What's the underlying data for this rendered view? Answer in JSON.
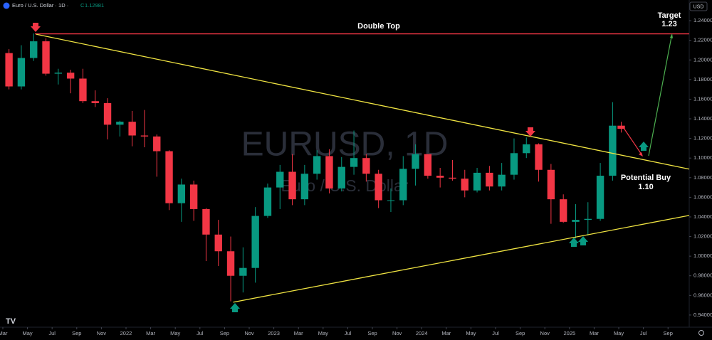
{
  "header": {
    "symbol": "Euro / U.S. Dollar · 1D ·",
    "close_label": "C",
    "close": 1.12981,
    "currency": "USD"
  },
  "chart_data": {
    "type": "candlestick",
    "title": "EURUSD, 1D",
    "subtitle": "Euro / U.S. Dollar",
    "up_color": "#089981",
    "down_color": "#f23645",
    "xlim": [
      -0.23,
      55.72
    ],
    "ylim": [
      0.9276,
      1.2611
    ],
    "x": [
      0.5,
      1.5,
      2.5,
      3.5,
      4.5,
      5.5,
      6.5,
      7.5,
      8.5,
      9.5,
      10.5,
      11.5,
      12.5,
      13.5,
      14.5,
      15.5,
      16.5,
      17.5,
      18.5,
      19.5,
      20.5,
      21.5,
      22.5,
      23.5,
      24.5,
      25.5,
      26.5,
      27.5,
      28.5,
      29.5,
      30.5,
      31.5,
      32.5,
      33.5,
      34.5,
      35.5,
      36.5,
      37.5,
      38.5,
      39.5,
      40.5,
      41.5,
      42.5,
      43.5,
      44.5,
      45.5,
      46.5,
      47.5,
      48.5,
      49.5,
      50.2
    ],
    "open": [
      1.207,
      1.173,
      1.202,
      1.219,
      1.186,
      1.187,
      1.181,
      1.158,
      1.156,
      1.134,
      1.137,
      1.123,
      1.122,
      1.107,
      1.054,
      1.073,
      1.048,
      1.022,
      1.005,
      0.98,
      0.988,
      1.041,
      1.07,
      1.086,
      1.058,
      1.084,
      1.102,
      1.069,
      1.091,
      1.1,
      1.084,
      1.057,
      1.057,
      1.089,
      1.104,
      1.082,
      1.08,
      1.079,
      1.067,
      1.085,
      1.071,
      1.083,
      1.105,
      1.114,
      1.088,
      1.058,
      1.035,
      1.037,
      1.038,
      1.082,
      1.133
    ],
    "high": [
      1.211,
      1.215,
      1.227,
      1.222,
      1.191,
      1.19,
      1.191,
      1.169,
      1.161,
      1.138,
      1.148,
      1.149,
      1.124,
      1.108,
      1.079,
      1.077,
      1.049,
      1.037,
      1.02,
      1.009,
      1.05,
      1.074,
      1.093,
      1.104,
      1.093,
      1.108,
      1.109,
      1.101,
      1.128,
      1.104,
      1.088,
      1.069,
      1.102,
      1.114,
      1.104,
      1.09,
      1.098,
      1.088,
      1.09,
      1.092,
      1.095,
      1.12,
      1.121,
      1.115,
      1.094,
      1.063,
      1.053,
      1.055,
      1.095,
      1.157,
      1.137
    ],
    "low": [
      1.17,
      1.17,
      1.199,
      1.184,
      1.175,
      1.166,
      1.156,
      1.152,
      1.119,
      1.122,
      1.112,
      1.111,
      1.081,
      1.047,
      1.035,
      1.036,
      0.995,
      0.99,
      0.954,
      0.963,
      0.973,
      1.039,
      1.048,
      1.052,
      1.052,
      1.078,
      1.064,
      1.066,
      1.083,
      1.076,
      1.049,
      1.045,
      1.052,
      1.072,
      1.079,
      1.07,
      1.077,
      1.06,
      1.065,
      1.067,
      1.067,
      1.078,
      1.1,
      1.076,
      1.033,
      1.034,
      1.018,
      1.021,
      1.036,
      1.077,
      1.126
    ],
    "close": [
      1.173,
      1.202,
      1.219,
      1.186,
      1.187,
      1.181,
      1.158,
      1.156,
      1.134,
      1.137,
      1.123,
      1.122,
      1.107,
      1.054,
      1.073,
      1.048,
      1.022,
      1.005,
      0.98,
      0.988,
      1.041,
      1.07,
      1.086,
      1.058,
      1.084,
      1.102,
      1.069,
      1.091,
      1.1,
      1.084,
      1.057,
      1.057,
      1.089,
      1.104,
      1.082,
      1.08,
      1.079,
      1.067,
      1.085,
      1.071,
      1.083,
      1.105,
      1.114,
      1.088,
      1.058,
      1.035,
      1.037,
      1.038,
      1.082,
      1.133,
      1.12981
    ],
    "yticks": [
      {
        "value": 0.94,
        "label": "0.94000"
      },
      {
        "value": 0.96,
        "label": "0.96000"
      },
      {
        "value": 0.98,
        "label": "0.98000"
      },
      {
        "value": 1.0,
        "label": "1.00000"
      },
      {
        "value": 1.02,
        "label": "1.02000"
      },
      {
        "value": 1.04,
        "label": "1.04000"
      },
      {
        "value": 1.06,
        "label": "1.06000"
      },
      {
        "value": 1.08,
        "label": "1.08000"
      },
      {
        "value": 1.1,
        "label": "1.10000"
      },
      {
        "value": 1.12,
        "label": "1.12000"
      },
      {
        "value": 1.14,
        "label": "1.14000"
      },
      {
        "value": 1.16,
        "label": "1.16000"
      },
      {
        "value": 1.18,
        "label": "1.18000"
      },
      {
        "value": 1.2,
        "label": "1.20000"
      },
      {
        "value": 1.22,
        "label": "1.22000"
      },
      {
        "value": 1.24,
        "label": "1.24000"
      }
    ],
    "xticks": [
      {
        "value": 0,
        "label": "Mar"
      },
      {
        "value": 2,
        "label": "May"
      },
      {
        "value": 4,
        "label": "Jul"
      },
      {
        "value": 6,
        "label": "Sep"
      },
      {
        "value": 8,
        "label": "Nov"
      },
      {
        "value": 10,
        "label": "2022"
      },
      {
        "value": 12,
        "label": "Mar"
      },
      {
        "value": 14,
        "label": "May"
      },
      {
        "value": 16,
        "label": "Jul"
      },
      {
        "value": 18,
        "label": "Sep"
      },
      {
        "value": 20,
        "label": "Nov"
      },
      {
        "value": 22,
        "label": "2023"
      },
      {
        "value": 24,
        "label": "Mar"
      },
      {
        "value": 26,
        "label": "May"
      },
      {
        "value": 28,
        "label": "Jul"
      },
      {
        "value": 30,
        "label": "Sep"
      },
      {
        "value": 32,
        "label": "Nov"
      },
      {
        "value": 34,
        "label": "2024"
      },
      {
        "value": 36,
        "label": "Mar"
      },
      {
        "value": 38,
        "label": "May"
      },
      {
        "value": 40,
        "label": "Jul"
      },
      {
        "value": 42,
        "label": "Sep"
      },
      {
        "value": 44,
        "label": "Nov"
      },
      {
        "value": 46,
        "label": "2025"
      },
      {
        "value": 48,
        "label": "Mar"
      },
      {
        "value": 50,
        "label": "May"
      },
      {
        "value": 52,
        "label": "Jul"
      },
      {
        "value": 54,
        "label": "Sep"
      }
    ],
    "trendlines": [
      {
        "color": "#f23645",
        "x": [
          2.6,
          55.72
        ],
        "y": [
          1.2266,
          1.2266
        ]
      },
      {
        "color": "#f0e442",
        "x": [
          2.7,
          55.72
        ],
        "y": [
          1.2262,
          1.0887
        ]
      },
      {
        "color": "#f0e442",
        "x": [
          18.7,
          55.72
        ],
        "y": [
          0.9531,
          1.0415
        ]
      }
    ],
    "annotations": [
      {
        "text": "Double Top"
      },
      {
        "text": "Target"
      },
      {
        "text": "1.23"
      },
      {
        "text": "Potential Buy"
      },
      {
        "text": "1.10"
      }
    ]
  }
}
